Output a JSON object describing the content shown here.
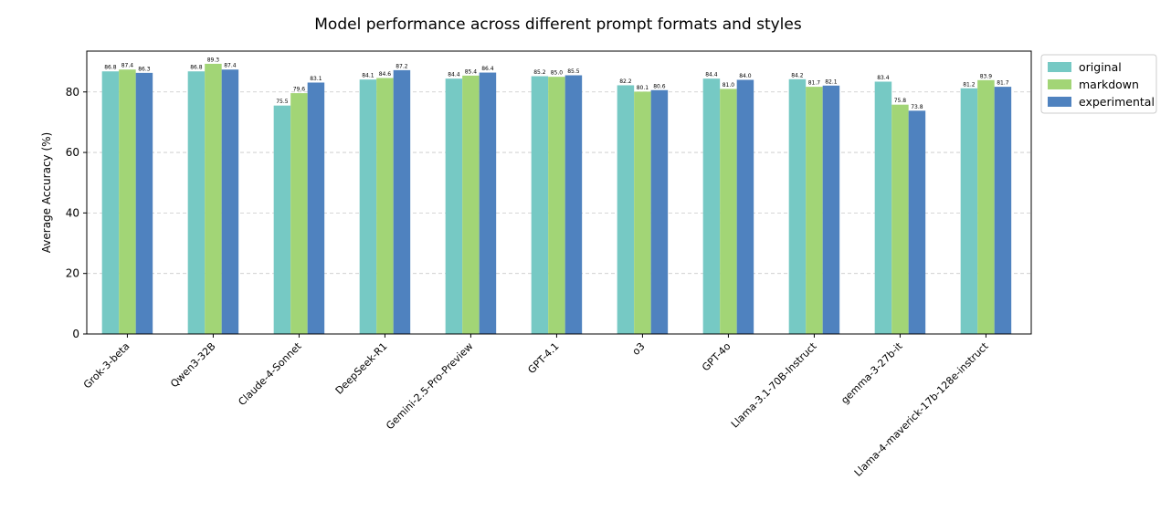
{
  "chart_data": {
    "type": "bar",
    "title": "Model performance across different prompt formats and styles",
    "xlabel": "",
    "ylabel": "Average Accuracy (%)",
    "ylim": [
      0,
      93.5
    ],
    "yticks": [
      0,
      20,
      40,
      60,
      80
    ],
    "grid": "y-dashed",
    "legend_position": "top-right-outside",
    "categories": [
      "Grok-3-beta",
      "Qwen3-32B",
      "Claude-4-Sonnet",
      "DeepSeek-R1",
      "Gemini-2.5-Pro-Preview",
      "GPT-4.1",
      "o3",
      "GPT-4o",
      "Llama-3.1-70B-Instruct",
      "gemma-3-27b-it",
      "Llama-4-maverick-17b-128e-instruct"
    ],
    "series": [
      {
        "name": "original",
        "color": "#76c9c4",
        "values": [
          86.8,
          86.8,
          75.5,
          84.1,
          84.4,
          85.2,
          82.2,
          84.4,
          84.2,
          83.4,
          81.2
        ]
      },
      {
        "name": "markdown",
        "color": "#a2d576",
        "values": [
          87.4,
          89.3,
          79.6,
          84.6,
          85.4,
          85.0,
          80.1,
          81.0,
          81.7,
          75.8,
          83.9
        ]
      },
      {
        "name": "experimental",
        "color": "#4f82bf",
        "values": [
          86.3,
          87.4,
          83.1,
          87.2,
          86.4,
          85.5,
          80.6,
          84.0,
          82.1,
          73.8,
          81.7
        ]
      }
    ]
  }
}
